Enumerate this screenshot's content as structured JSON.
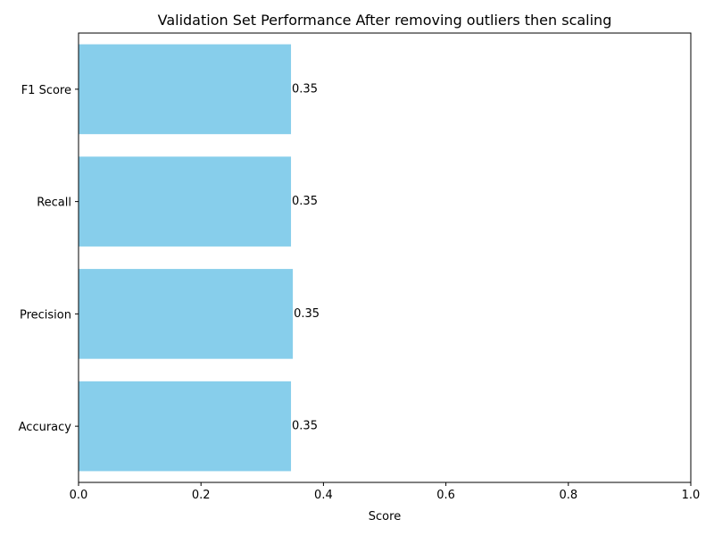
{
  "chart_data": {
    "type": "bar",
    "orientation": "horizontal",
    "title": "Validation Set Performance After removing outliers then scaling",
    "xlabel": "Score",
    "ylabel": "",
    "xlim": [
      0,
      1
    ],
    "xticks": [
      "0.0",
      "0.2",
      "0.4",
      "0.6",
      "0.8",
      "1.0"
    ],
    "categories": [
      "Accuracy",
      "Precision",
      "Recall",
      "F1 Score"
    ],
    "values": [
      0.347,
      0.35,
      0.347,
      0.347
    ],
    "data_labels": [
      "0.35",
      "0.35",
      "0.35",
      "0.35"
    ],
    "bar_color": "#87ceeb",
    "grid": false,
    "legend": "none"
  }
}
